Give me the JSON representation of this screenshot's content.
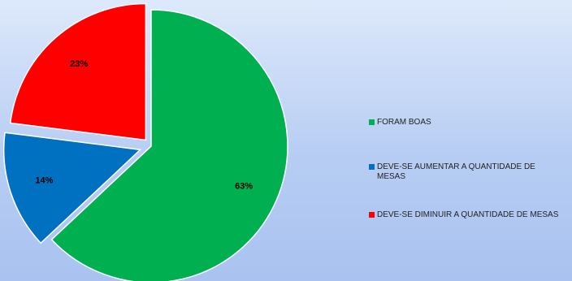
{
  "chart_data": {
    "type": "pie",
    "title": "",
    "legend_position": "right",
    "start_angle_deg": 0,
    "direction": "clockwise",
    "slices": [
      {
        "name": "FORAM BOAS",
        "value": 63,
        "label": "63%",
        "color": "#00b050"
      },
      {
        "name": "DEVE-SE AUMENTAR A QUANTIDADE DE MESAS",
        "value": 14,
        "label": "14%",
        "color": "#0070c0"
      },
      {
        "name": "DEVE-SE DIMINUIR A QUANTIDADE DE MESAS",
        "value": 23,
        "label": "23%",
        "color": "#ff0000"
      }
    ]
  }
}
